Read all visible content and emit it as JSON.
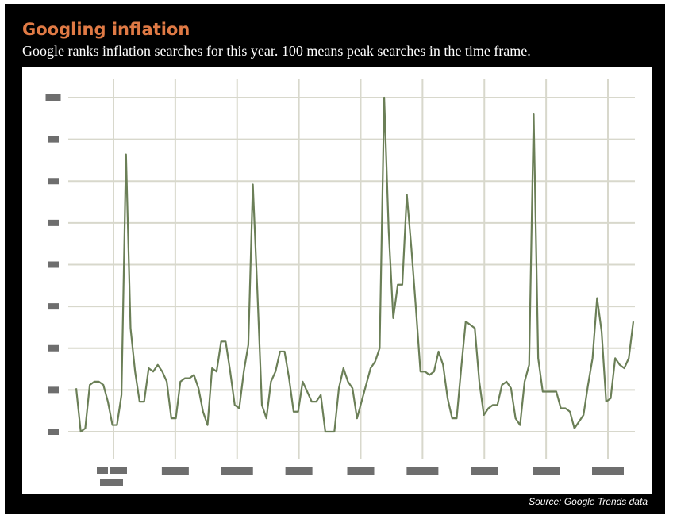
{
  "title": "Googling inflation",
  "subtitle": "Google ranks inflation searches for this year. 100 means peak searches in the time frame.",
  "source": "Source: Google Trends data",
  "colors": {
    "frame": "#000000",
    "title": "#e07a45",
    "line": "#6b7f57",
    "grid": "#d8d8cc",
    "tick_placeholder": "#6e6e6e"
  },
  "chart_data": {
    "type": "line",
    "ylim": [
      0,
      100
    ],
    "grid": true,
    "y_gridlines": [
      0,
      12.5,
      25,
      37.5,
      50,
      62.5,
      75,
      87.5,
      100
    ],
    "x_gridline_count": 9,
    "tick_labels_legible": false,
    "series": [
      {
        "values": [
          13,
          0,
          1,
          14,
          15,
          15,
          14,
          9,
          2,
          2,
          11,
          83,
          31,
          18,
          9,
          9,
          19,
          18,
          20,
          18,
          15,
          4,
          4,
          15,
          16,
          16,
          17,
          13,
          6,
          2,
          19,
          18,
          27,
          27,
          18,
          8,
          7,
          18,
          26,
          74,
          42,
          8,
          4,
          15,
          18,
          24,
          24,
          16,
          6,
          6,
          15,
          12,
          9,
          9,
          11,
          0,
          0,
          0,
          13,
          19,
          15,
          13,
          4,
          9,
          14,
          19,
          21,
          25,
          100,
          60,
          34,
          44,
          44,
          71,
          55,
          37,
          18,
          18,
          17,
          18,
          24,
          20,
          10,
          4,
          4,
          19,
          33,
          32,
          31,
          15,
          5,
          7,
          8,
          8,
          14,
          15,
          13,
          4,
          2,
          15,
          20,
          95,
          22,
          12,
          12,
          12,
          12,
          7,
          7,
          6,
          1,
          3,
          5,
          14,
          22,
          40,
          30,
          9,
          10,
          22,
          20,
          19,
          22,
          33
        ]
      }
    ]
  }
}
